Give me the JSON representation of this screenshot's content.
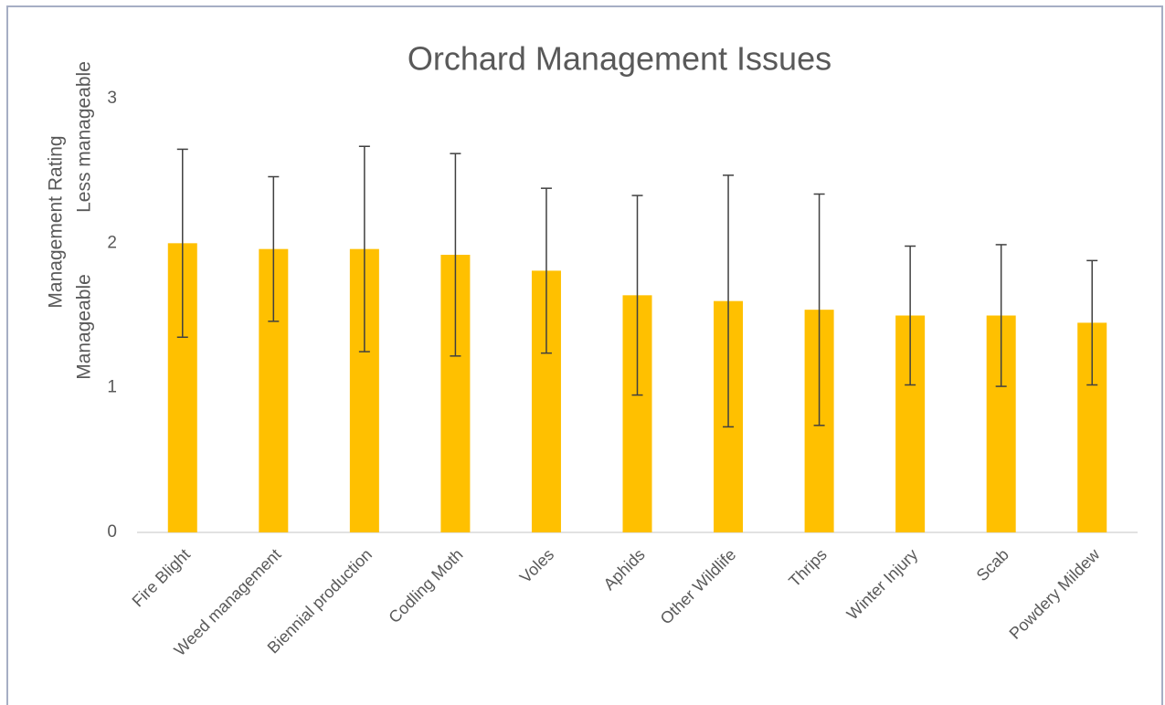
{
  "chart_data": {
    "type": "bar",
    "title": "Orchard Management Issues",
    "y_label": "Management Rating",
    "y_label_low": "Manageable",
    "y_label_high": "Less manageable",
    "categories": [
      "Fire Blight",
      "Weed management",
      "Biennial production",
      "Codling Moth",
      "Voles",
      "Aphids",
      "Other Wildlife",
      "Thrips",
      "Winter Injury",
      "Scab",
      "Powdery Mildew"
    ],
    "values": [
      2.0,
      1.96,
      1.96,
      1.92,
      1.81,
      1.64,
      1.6,
      1.54,
      1.5,
      1.5,
      1.45
    ],
    "errors": [
      0.65,
      0.5,
      0.71,
      0.7,
      0.57,
      0.69,
      0.87,
      0.8,
      0.48,
      0.49,
      0.43
    ],
    "color": "#ffc000",
    "error_color": "#404040",
    "ylim": [
      0,
      3
    ],
    "yticks": [
      0,
      1,
      2,
      3
    ],
    "grid": false
  }
}
